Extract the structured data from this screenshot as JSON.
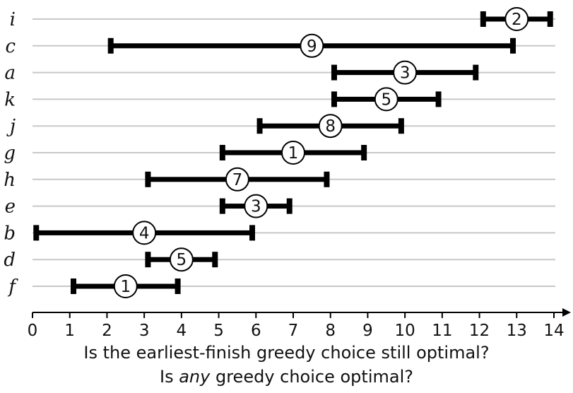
{
  "axis": {
    "min": 0,
    "max": 14,
    "ticks": [
      0,
      1,
      2,
      3,
      4,
      5,
      6,
      7,
      8,
      9,
      10,
      11,
      12,
      13,
      14
    ]
  },
  "intervals": [
    {
      "label": "i",
      "start": 12.1,
      "end": 13.9,
      "weight": "2"
    },
    {
      "label": "c",
      "start": 2.1,
      "end": 12.9,
      "weight": "9"
    },
    {
      "label": "a",
      "start": 8.1,
      "end": 11.9,
      "weight": "3"
    },
    {
      "label": "k",
      "start": 8.1,
      "end": 10.9,
      "weight": "5"
    },
    {
      "label": "j",
      "start": 6.1,
      "end": 9.9,
      "weight": "8"
    },
    {
      "label": "g",
      "start": 5.1,
      "end": 8.9,
      "weight": "1"
    },
    {
      "label": "h",
      "start": 3.1,
      "end": 7.9,
      "weight": "7"
    },
    {
      "label": "e",
      "start": 5.1,
      "end": 6.9,
      "weight": "3"
    },
    {
      "label": "b",
      "start": 0.1,
      "end": 5.9,
      "weight": "4"
    },
    {
      "label": "d",
      "start": 3.1,
      "end": 4.9,
      "weight": "5"
    },
    {
      "label": "f",
      "start": 1.1,
      "end": 3.9,
      "weight": "1"
    }
  ],
  "caption": {
    "line1": "Is the earliest-finish greedy choice still optimal?",
    "line2_prefix": "Is ",
    "line2_emph": "any",
    "line2_suffix": " greedy choice optimal?"
  },
  "colors": {
    "gridline": "#c8c8c8",
    "bar": "#000000",
    "circle_fill": "#ffffff"
  }
}
